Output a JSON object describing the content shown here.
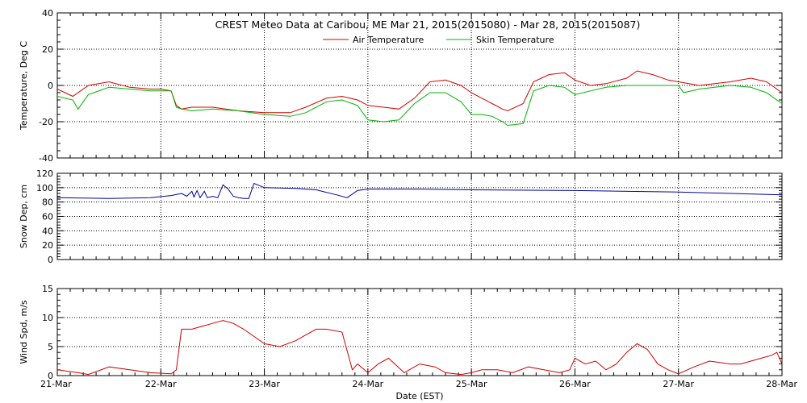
{
  "title": "CREST Meteo Data at Caribou, ME   Mar 21, 2015(2015080) - Mar 28, 2015(2015087)",
  "xlabel": "Date (EST)",
  "colors": {
    "air": "#d40000",
    "skin": "#00b400",
    "snow": "#00009c",
    "wind": "#d40000",
    "grid": "#000000"
  },
  "chart_data": [
    {
      "type": "line",
      "ylabel": "Temperature, Deg C",
      "ylim": [
        -40,
        40
      ],
      "yticks": [
        "40",
        "20",
        "0",
        "-20",
        "-40"
      ],
      "xlim": [
        0,
        7
      ],
      "grid": true,
      "legend": "top-center",
      "series": [
        {
          "name": "Air Temperature",
          "color": "#d40000",
          "x": [
            0,
            0.15,
            0.3,
            0.5,
            0.7,
            0.9,
            1.0,
            1.1,
            1.15,
            1.2,
            1.3,
            1.5,
            1.75,
            2.0,
            2.25,
            2.4,
            2.6,
            2.75,
            2.9,
            3.0,
            3.15,
            3.3,
            3.45,
            3.6,
            3.75,
            3.9,
            4.0,
            4.1,
            4.2,
            4.3,
            4.35,
            4.5,
            4.6,
            4.75,
            4.9,
            5.0,
            5.15,
            5.3,
            5.5,
            5.6,
            5.75,
            5.9,
            6.0,
            6.2,
            6.5,
            6.6,
            6.7,
            6.85,
            7.0
          ],
          "y": [
            -2,
            -6,
            0,
            2,
            -1,
            -2,
            -2,
            -3,
            -11,
            -13,
            -12,
            -12,
            -14,
            -15,
            -15,
            -12,
            -7,
            -6,
            -8,
            -11,
            -12,
            -13,
            -7,
            2,
            3,
            0,
            -4,
            -7,
            -10,
            -13,
            -14,
            -10,
            2,
            6,
            7,
            3,
            0,
            1,
            4,
            8,
            6,
            3,
            2,
            0,
            2,
            3,
            4,
            2,
            -4
          ]
        },
        {
          "name": "Skin Temperature",
          "color": "#00b400",
          "x": [
            0,
            0.15,
            0.2,
            0.3,
            0.5,
            0.7,
            0.9,
            1.0,
            1.1,
            1.15,
            1.2,
            1.3,
            1.5,
            1.75,
            2.0,
            2.25,
            2.4,
            2.6,
            2.75,
            2.9,
            3.0,
            3.15,
            3.3,
            3.45,
            3.6,
            3.75,
            3.9,
            4.0,
            4.1,
            4.2,
            4.3,
            4.35,
            4.5,
            4.6,
            4.75,
            4.9,
            5.0,
            5.15,
            5.3,
            5.5,
            5.75,
            6.0,
            6.05,
            6.2,
            6.5,
            6.7,
            6.85,
            7.0
          ],
          "y": [
            -6,
            -8,
            -13,
            -5,
            -1,
            -2,
            -3,
            -3,
            -3,
            -12,
            -13,
            -14,
            -13,
            -14,
            -16,
            -17,
            -15,
            -9,
            -8,
            -11,
            -19,
            -20,
            -19,
            -10,
            -4,
            -4,
            -9,
            -16,
            -16,
            -17,
            -20,
            -22,
            -21,
            -3,
            0,
            -1,
            -5,
            -3,
            -1,
            0,
            0,
            0,
            -4,
            -2,
            0,
            -1,
            -4,
            -10
          ]
        }
      ]
    },
    {
      "type": "line",
      "ylabel": "Snow Dep, cm",
      "ylim": [
        0,
        120
      ],
      "yticks": [
        "120",
        "100",
        "80",
        "60",
        "40",
        "20",
        "0"
      ],
      "xlim": [
        0,
        7
      ],
      "grid": true,
      "series": [
        {
          "color": "#00009c",
          "x": [
            0,
            0.5,
            0.9,
            1.1,
            1.2,
            1.25,
            1.3,
            1.32,
            1.35,
            1.38,
            1.42,
            1.45,
            1.5,
            1.55,
            1.6,
            1.65,
            1.7,
            1.75,
            1.8,
            1.85,
            1.9,
            1.95,
            2.0,
            2.3,
            2.5,
            2.7,
            2.8,
            2.9,
            3.0,
            3.5,
            4.0,
            5.0,
            6.0,
            7.0
          ],
          "y": [
            86,
            85,
            86,
            89,
            92,
            88,
            95,
            87,
            96,
            86,
            95,
            86,
            88,
            86,
            104,
            98,
            88,
            86,
            85,
            85,
            106,
            103,
            100,
            99,
            97,
            90,
            86,
            96,
            98,
            98,
            97,
            96,
            94,
            90
          ]
        }
      ]
    },
    {
      "type": "line",
      "ylabel": "Wind Spd, m/s",
      "ylim": [
        0,
        15
      ],
      "yticks": [
        "15",
        "10",
        "5",
        "0"
      ],
      "xlim": [
        0,
        7
      ],
      "xticklabels": [
        "21-Mar",
        "22-Mar",
        "23-Mar",
        "24-Mar",
        "25-Mar",
        "26-Mar",
        "27-Mar",
        "28-Mar"
      ],
      "grid": true,
      "series": [
        {
          "color": "#d40000",
          "x": [
            0,
            0.2,
            0.3,
            0.5,
            0.7,
            0.9,
            1.1,
            1.15,
            1.2,
            1.3,
            1.5,
            1.6,
            1.7,
            1.8,
            2.0,
            2.15,
            2.3,
            2.4,
            2.5,
            2.6,
            2.75,
            2.85,
            2.9,
            3.0,
            3.1,
            3.2,
            3.35,
            3.5,
            3.65,
            3.75,
            3.9,
            4.0,
            4.1,
            4.25,
            4.4,
            4.55,
            4.7,
            4.85,
            4.95,
            5.0,
            5.1,
            5.2,
            5.3,
            5.4,
            5.5,
            5.6,
            5.7,
            5.8,
            5.9,
            6.0,
            6.15,
            6.3,
            6.5,
            6.6,
            6.8,
            6.9,
            6.95,
            7.0
          ],
          "y": [
            1,
            0.5,
            0.2,
            1.5,
            1,
            0.5,
            0.3,
            1,
            8,
            8,
            9,
            9.5,
            9,
            8,
            5.5,
            5,
            6,
            7,
            8,
            8,
            7.5,
            1,
            2,
            0.5,
            2,
            3,
            0.5,
            2,
            1.5,
            0.5,
            0.2,
            0.5,
            1,
            1,
            0.5,
            1.5,
            1,
            0.5,
            1,
            3,
            2,
            2.5,
            1,
            2,
            4,
            5.5,
            4.5,
            2,
            1,
            0.3,
            1.5,
            2.5,
            2,
            2,
            3,
            3.5,
            4,
            2
          ]
        }
      ]
    }
  ]
}
